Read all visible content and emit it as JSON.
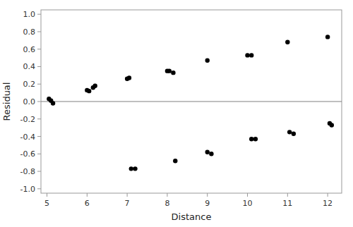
{
  "chart_data": {
    "type": "scatter",
    "x_label": "Distance",
    "y_label": "Residual",
    "x": [
      5.05,
      5.1,
      5.15,
      6.0,
      6.05,
      6.15,
      6.2,
      7.0,
      7.05,
      7.1,
      7.2,
      8.0,
      8.05,
      8.15,
      8.2,
      9.0,
      9.0,
      9.1,
      10.0,
      10.1,
      10.1,
      10.2,
      11.0,
      11.05,
      11.15,
      12.0,
      12.05,
      12.1
    ],
    "values": [
      0.03,
      0.01,
      -0.02,
      0.13,
      0.12,
      0.16,
      0.18,
      0.26,
      0.27,
      -0.77,
      -0.77,
      0.35,
      0.35,
      0.33,
      -0.68,
      0.47,
      -0.58,
      -0.6,
      0.53,
      0.53,
      -0.43,
      -0.43,
      0.68,
      -0.35,
      -0.37,
      0.74,
      -0.25,
      -0.27
    ],
    "color": "#000000",
    "hline": 0.0,
    "hline_color": "#808080",
    "xlim": [
      4.85,
      12.35
    ],
    "ylim": [
      -1.05,
      1.05
    ],
    "xticks": [
      5,
      6,
      7,
      8,
      9,
      10,
      11,
      12
    ],
    "yticks": [
      {
        "value": -1.0,
        "label": "-1.0"
      },
      -0.8,
      -0.6,
      -0.4,
      -0.2,
      {
        "value": 0.0,
        "label": "0.0"
      },
      0.2,
      0.4,
      0.6,
      0.8,
      {
        "value": 1.0,
        "label": "1.0"
      }
    ],
    "grid": false
  }
}
